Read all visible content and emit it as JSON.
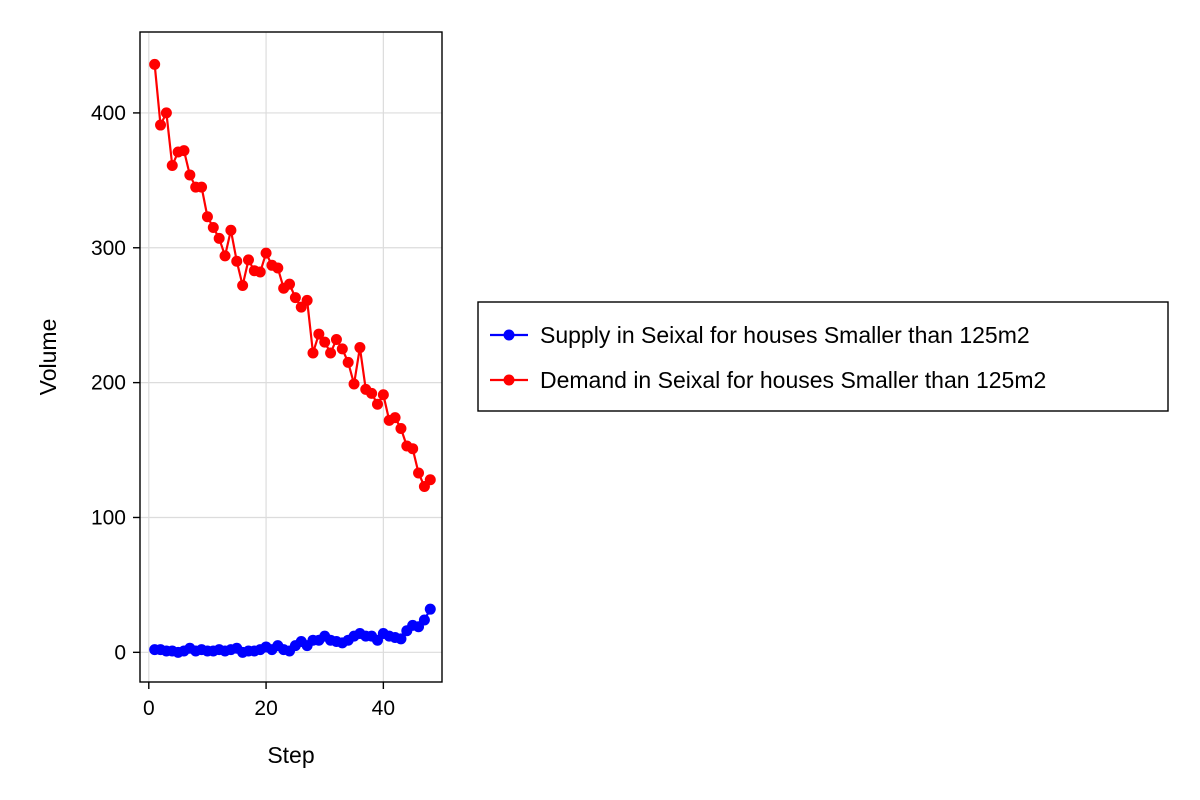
{
  "chart_data": {
    "type": "line",
    "title": "",
    "xlabel": "Step",
    "ylabel": "Volume",
    "xlim": [
      -1.5,
      50
    ],
    "ylim": [
      -22,
      460
    ],
    "x_ticks": [
      0,
      20,
      40
    ],
    "y_ticks": [
      0,
      100,
      200,
      300,
      400
    ],
    "x_tick_labels": [
      "0",
      "20",
      "40"
    ],
    "y_tick_labels": [
      "0",
      "100",
      "200",
      "300",
      "400"
    ],
    "grid": true,
    "legend_position": "right",
    "x": [
      1,
      2,
      3,
      4,
      5,
      6,
      7,
      8,
      9,
      10,
      11,
      12,
      13,
      14,
      15,
      16,
      17,
      18,
      19,
      20,
      21,
      22,
      23,
      24,
      25,
      26,
      27,
      28,
      29,
      30,
      31,
      32,
      33,
      34,
      35,
      36,
      37,
      38,
      39,
      40,
      41,
      42,
      43,
      44,
      45,
      46,
      47,
      48
    ],
    "series": [
      {
        "name": "Supply in Seixal for houses Smaller than 125m2",
        "color": "#0000ff",
        "values": [
          2,
          2,
          1,
          1,
          0,
          1,
          3,
          1,
          2,
          1,
          1,
          2,
          1,
          2,
          3,
          0,
          1,
          1,
          2,
          4,
          2,
          5,
          2,
          1,
          5,
          8,
          5,
          9,
          9,
          12,
          9,
          8,
          7,
          9,
          12,
          14,
          12,
          12,
          9,
          14,
          12,
          11,
          10,
          16,
          20,
          19,
          24,
          32
        ]
      },
      {
        "name": "Demand in Seixal for houses Smaller than 125m2",
        "color": "#ff0000",
        "values": [
          436,
          391,
          400,
          361,
          371,
          372,
          354,
          345,
          345,
          323,
          315,
          307,
          294,
          313,
          290,
          272,
          291,
          283,
          282,
          296,
          287,
          285,
          270,
          273,
          263,
          256,
          261,
          222,
          236,
          230,
          222,
          232,
          225,
          215,
          199,
          226,
          195,
          192,
          184,
          191,
          172,
          174,
          166,
          153,
          151,
          133,
          123,
          128
        ]
      }
    ]
  }
}
